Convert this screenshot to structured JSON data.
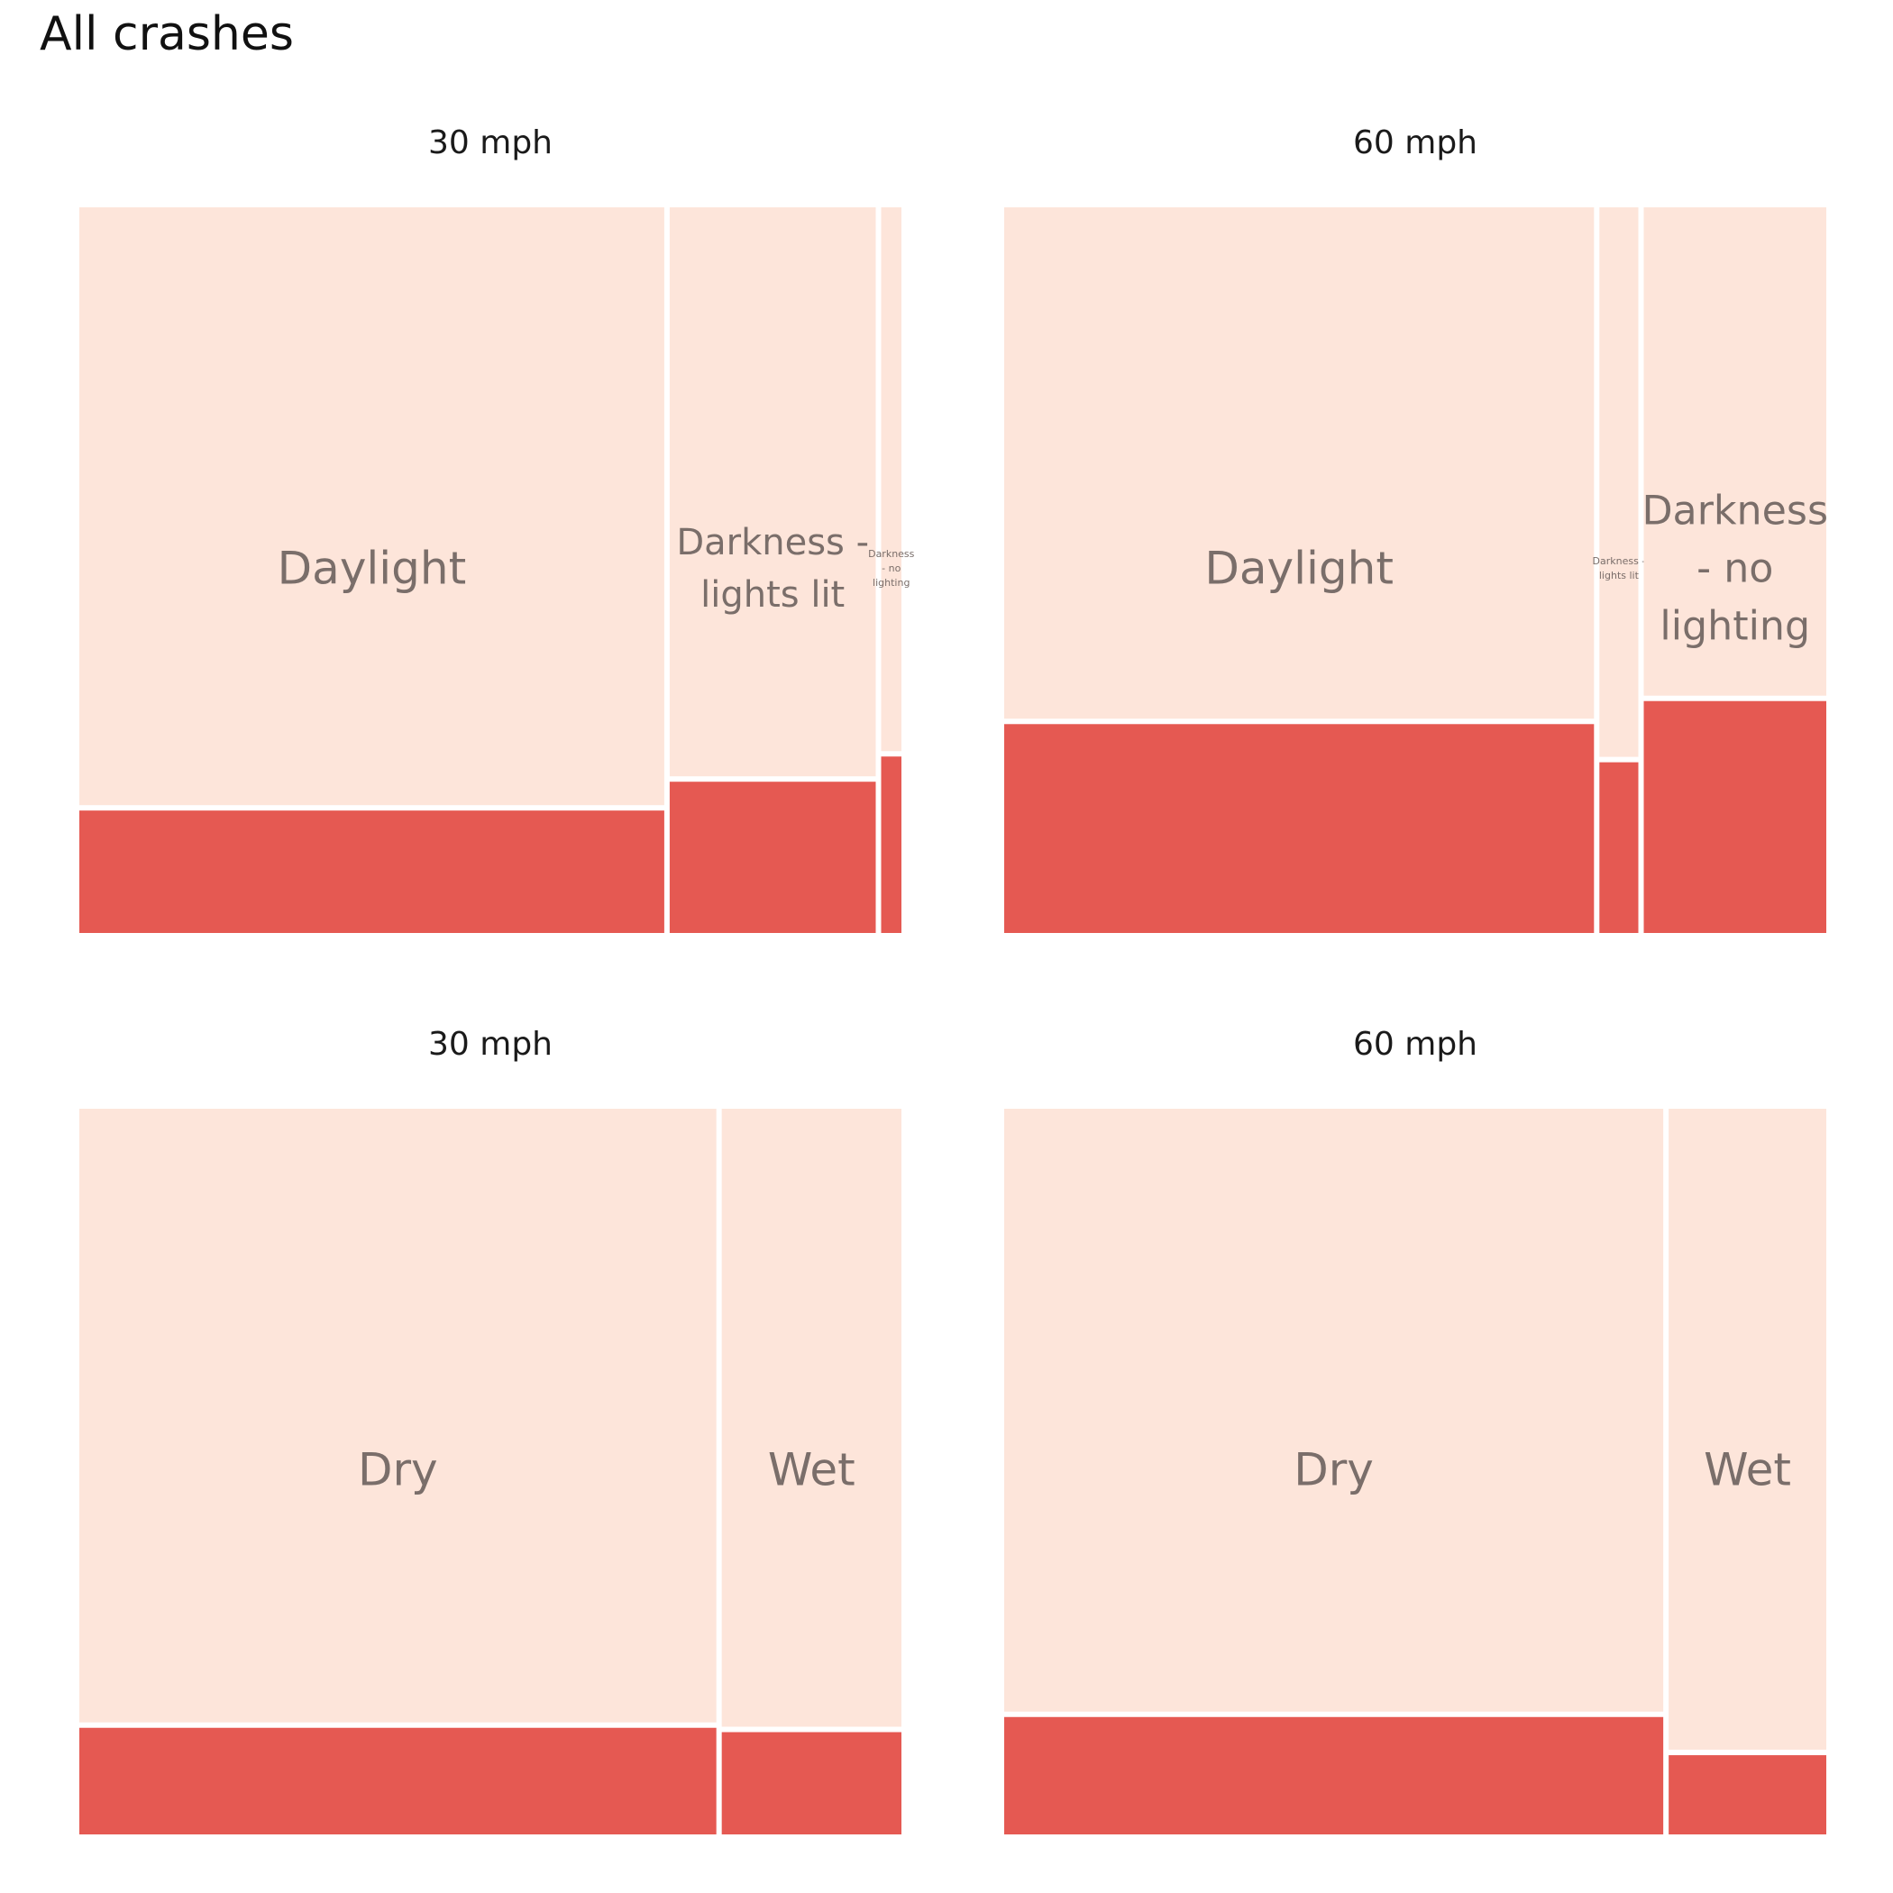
{
  "title": "All crashes",
  "colors": {
    "background_fill": "#fde5da",
    "highlight_fill": "#e55952",
    "label": "#7a6e6a",
    "gap": "#ffffff"
  },
  "chart_data": [
    {
      "type": "mosaic",
      "title": "30 mph",
      "categories": [
        {
          "label": [
            "Daylight"
          ],
          "width_share": 0.721,
          "highlight_share": 0.17
        },
        {
          "label": [
            "Darkness -",
            "lights lit"
          ],
          "width_share": 0.254,
          "highlight_share": 0.21
        },
        {
          "label": [
            "Darkness",
            "- no",
            "lighting"
          ],
          "width_share": 0.025,
          "highlight_share": 0.245
        }
      ]
    },
    {
      "type": "mosaic",
      "title": "60 mph",
      "categories": [
        {
          "label": [
            "Daylight"
          ],
          "width_share": 0.727,
          "highlight_share": 0.29
        },
        {
          "label": [
            "Darkness -",
            "lights lit"
          ],
          "width_share": 0.048,
          "highlight_share": 0.237
        },
        {
          "label": [
            "Darkness",
            "- no",
            "lighting"
          ],
          "width_share": 0.225,
          "highlight_share": 0.322
        }
      ]
    },
    {
      "type": "mosaic",
      "title": "30 mph",
      "categories": [
        {
          "label": [
            "Dry"
          ],
          "width_share": 0.78,
          "highlight_share": 0.148
        },
        {
          "label": [
            "Wet"
          ],
          "width_share": 0.22,
          "highlight_share": 0.142
        }
      ]
    },
    {
      "type": "mosaic",
      "title": "60 mph",
      "categories": [
        {
          "label": [
            "Dry"
          ],
          "width_share": 0.807,
          "highlight_share": 0.163
        },
        {
          "label": [
            "Wet"
          ],
          "width_share": 0.193,
          "highlight_share": 0.11
        }
      ]
    }
  ]
}
